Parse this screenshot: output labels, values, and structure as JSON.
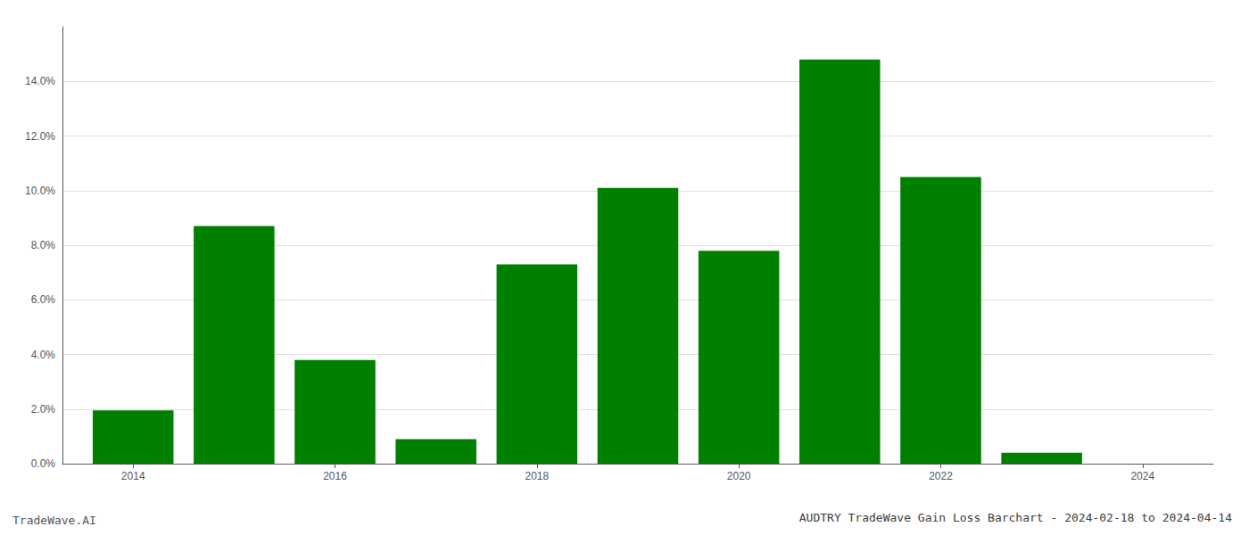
{
  "chart_data": {
    "type": "bar",
    "title": "AUDTRY TradeWave Gain Loss Barchart - 2024-02-18 to 2024-04-14",
    "annotations": [
      "TradeWave.AI"
    ],
    "x": [
      2014,
      2015,
      2016,
      2017,
      2018,
      2019,
      2020,
      2021,
      2022,
      2023
    ],
    "values": [
      0.0195,
      0.087,
      0.038,
      0.009,
      0.073,
      0.101,
      0.078,
      0.148,
      0.105,
      0.004
    ],
    "color": "#008000",
    "xlim": [
      2013.3,
      2024.7
    ],
    "xticks": [
      2014,
      2016,
      2018,
      2020,
      2022,
      2024
    ],
    "ylim": [
      0,
      0.16
    ],
    "yticks": [
      {
        "value": 0.0,
        "label": "0.0%"
      },
      {
        "value": 0.02,
        "label": "2.0%"
      },
      {
        "value": 0.04,
        "label": "4.0%"
      },
      {
        "value": 0.06,
        "label": "6.0%"
      },
      {
        "value": 0.08,
        "label": "8.0%"
      },
      {
        "value": 0.1,
        "label": "10.0%"
      },
      {
        "value": 0.12,
        "label": "12.0%"
      },
      {
        "value": 0.14,
        "label": "14.0%"
      }
    ],
    "grid": true
  }
}
